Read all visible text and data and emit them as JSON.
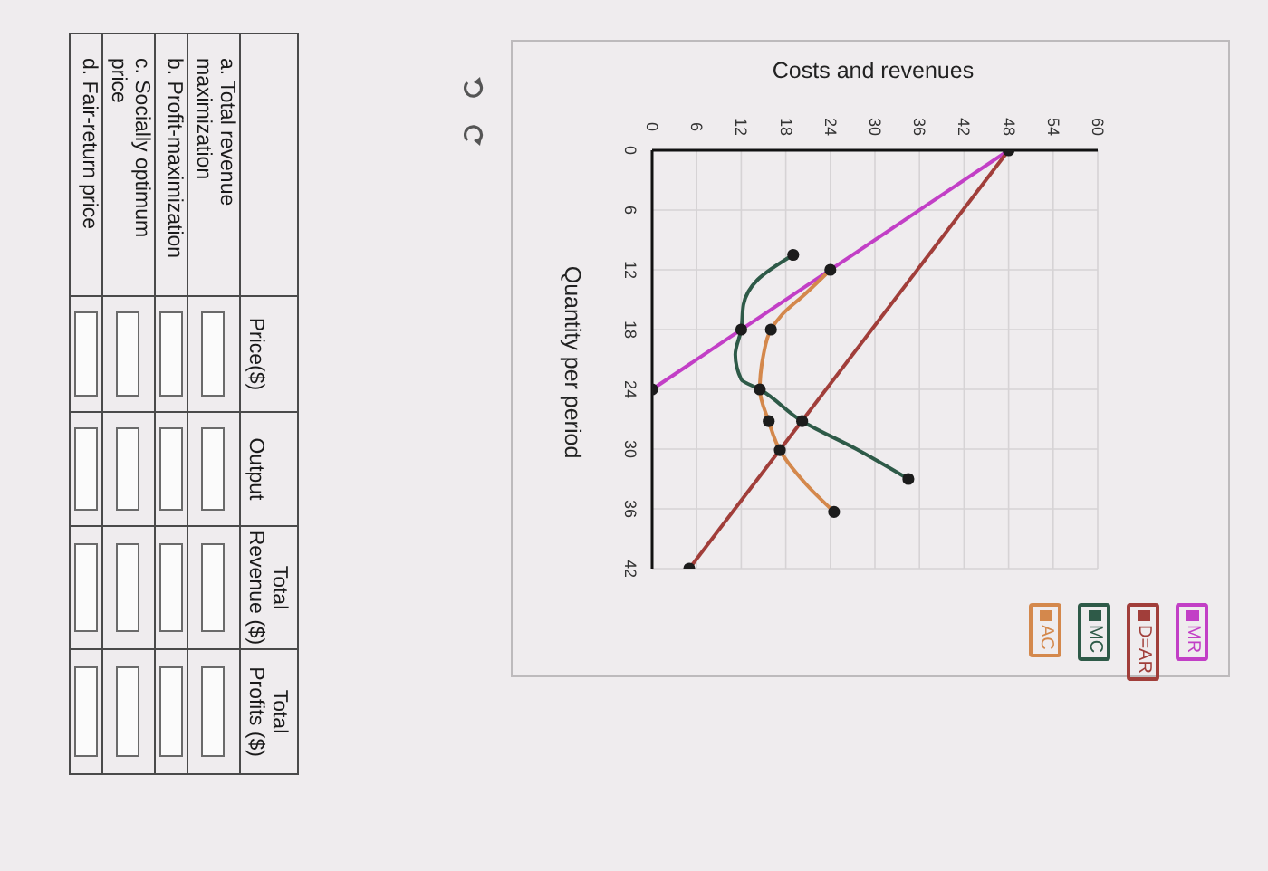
{
  "chart_data": [
    {
      "type": "line",
      "xlabel": "Costs and revenues",
      "ylabel": "Quantity per period",
      "xlim": [
        0,
        60
      ],
      "xticks": [
        0,
        6,
        12,
        18,
        24,
        30,
        36,
        42,
        48,
        54,
        60
      ],
      "ylim": [
        42,
        0
      ],
      "yticks": [
        0,
        6,
        12,
        18,
        24,
        30,
        36,
        42
      ],
      "grid": true,
      "legend": "bottom right",
      "series": [
        {
          "name": "MR",
          "color": "#c23fc6",
          "x": [
            48,
            0
          ],
          "values": [
            0,
            24
          ]
        },
        {
          "name": "D=AR",
          "color": "#a13e3a",
          "x": [
            48,
            5
          ],
          "values": [
            0,
            42
          ]
        },
        {
          "name": "MC",
          "color": "#2e5a48",
          "x": [
            19,
            14.2,
            12.3,
            12,
            11.2,
            12,
            14.5,
            20.2,
            27.5,
            34.5
          ],
          "values": [
            10.5,
            13,
            15.5,
            18,
            20.5,
            23,
            24,
            27.2,
            30,
            33
          ]
        },
        {
          "name": "AC",
          "color": "#d4884c",
          "x": [
            24,
            20.5,
            17.5,
            16,
            15,
            14.6,
            14.5,
            15.7,
            17.2,
            20.7,
            24.5
          ],
          "values": [
            12,
            14.5,
            16.5,
            18,
            20.5,
            22.5,
            24,
            27.2,
            30.1,
            33.5,
            36.3
          ]
        },
        {
          "type": "scatter",
          "marker": "circle",
          "color": "#1c1c1c",
          "x": [
            48,
            0,
            19,
            24,
            12,
            16,
            14.5,
            15.7,
            20.2,
            17.2,
            34.5,
            24.5,
            5
          ],
          "values": [
            0,
            24,
            10.5,
            12,
            18,
            18,
            24,
            27.2,
            27.2,
            30.1,
            33,
            36.3,
            42
          ]
        }
      ]
    },
    {
      "type": "other",
      "categories": [
        "Price($)",
        "Output",
        "Total Revenue ($)",
        "Total Profits ($)"
      ],
      "y_categories": [
        "a. Total revenue maximization",
        "b. Profit-maximization",
        "c. Socially optimum price",
        "d. Fair-return price"
      ]
    }
  ]
}
